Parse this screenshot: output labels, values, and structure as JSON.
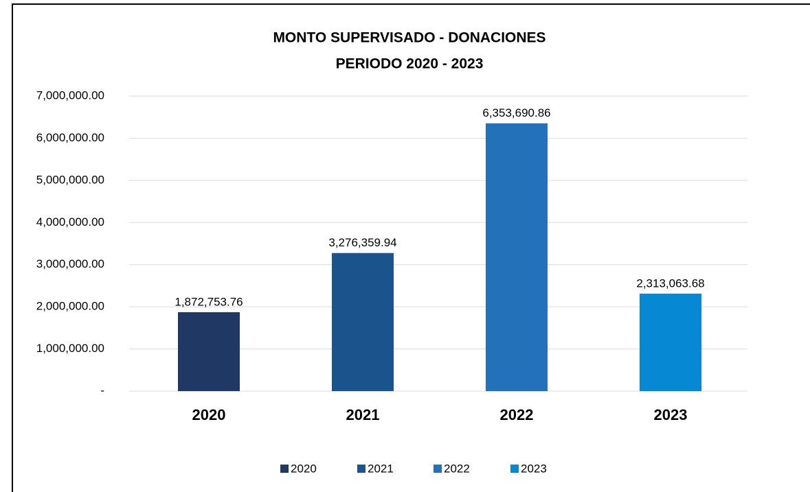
{
  "chart_data": {
    "type": "bar",
    "title": [
      "MONTO SUPERVISADO - DONACIONES",
      "PERIODO 2020 - 2023"
    ],
    "categories": [
      "2020",
      "2021",
      "2022",
      "2023"
    ],
    "values": [
      1872753.76,
      3276359.94,
      6353690.86,
      2313063.68
    ],
    "value_labels": [
      "1,872,753.76",
      "3,276,359.94",
      "6,353,690.86",
      "2,313,063.68"
    ],
    "colors": [
      "#203864",
      "#1b548c",
      "#2371b8",
      "#0689d2"
    ],
    "ylim": [
      0,
      7000000
    ],
    "yticks": [
      {
        "value": 0,
        "label": "-"
      },
      {
        "value": 1000000,
        "label": "1,000,000.00"
      },
      {
        "value": 2000000,
        "label": "2,000,000.00"
      },
      {
        "value": 3000000,
        "label": "3,000,000.00"
      },
      {
        "value": 4000000,
        "label": "4,000,000.00"
      },
      {
        "value": 5000000,
        "label": "5,000,000.00"
      },
      {
        "value": 6000000,
        "label": "6,000,000.00"
      },
      {
        "value": 7000000,
        "label": "7,000,000.00"
      }
    ],
    "grid": true,
    "legend": "bottom"
  }
}
